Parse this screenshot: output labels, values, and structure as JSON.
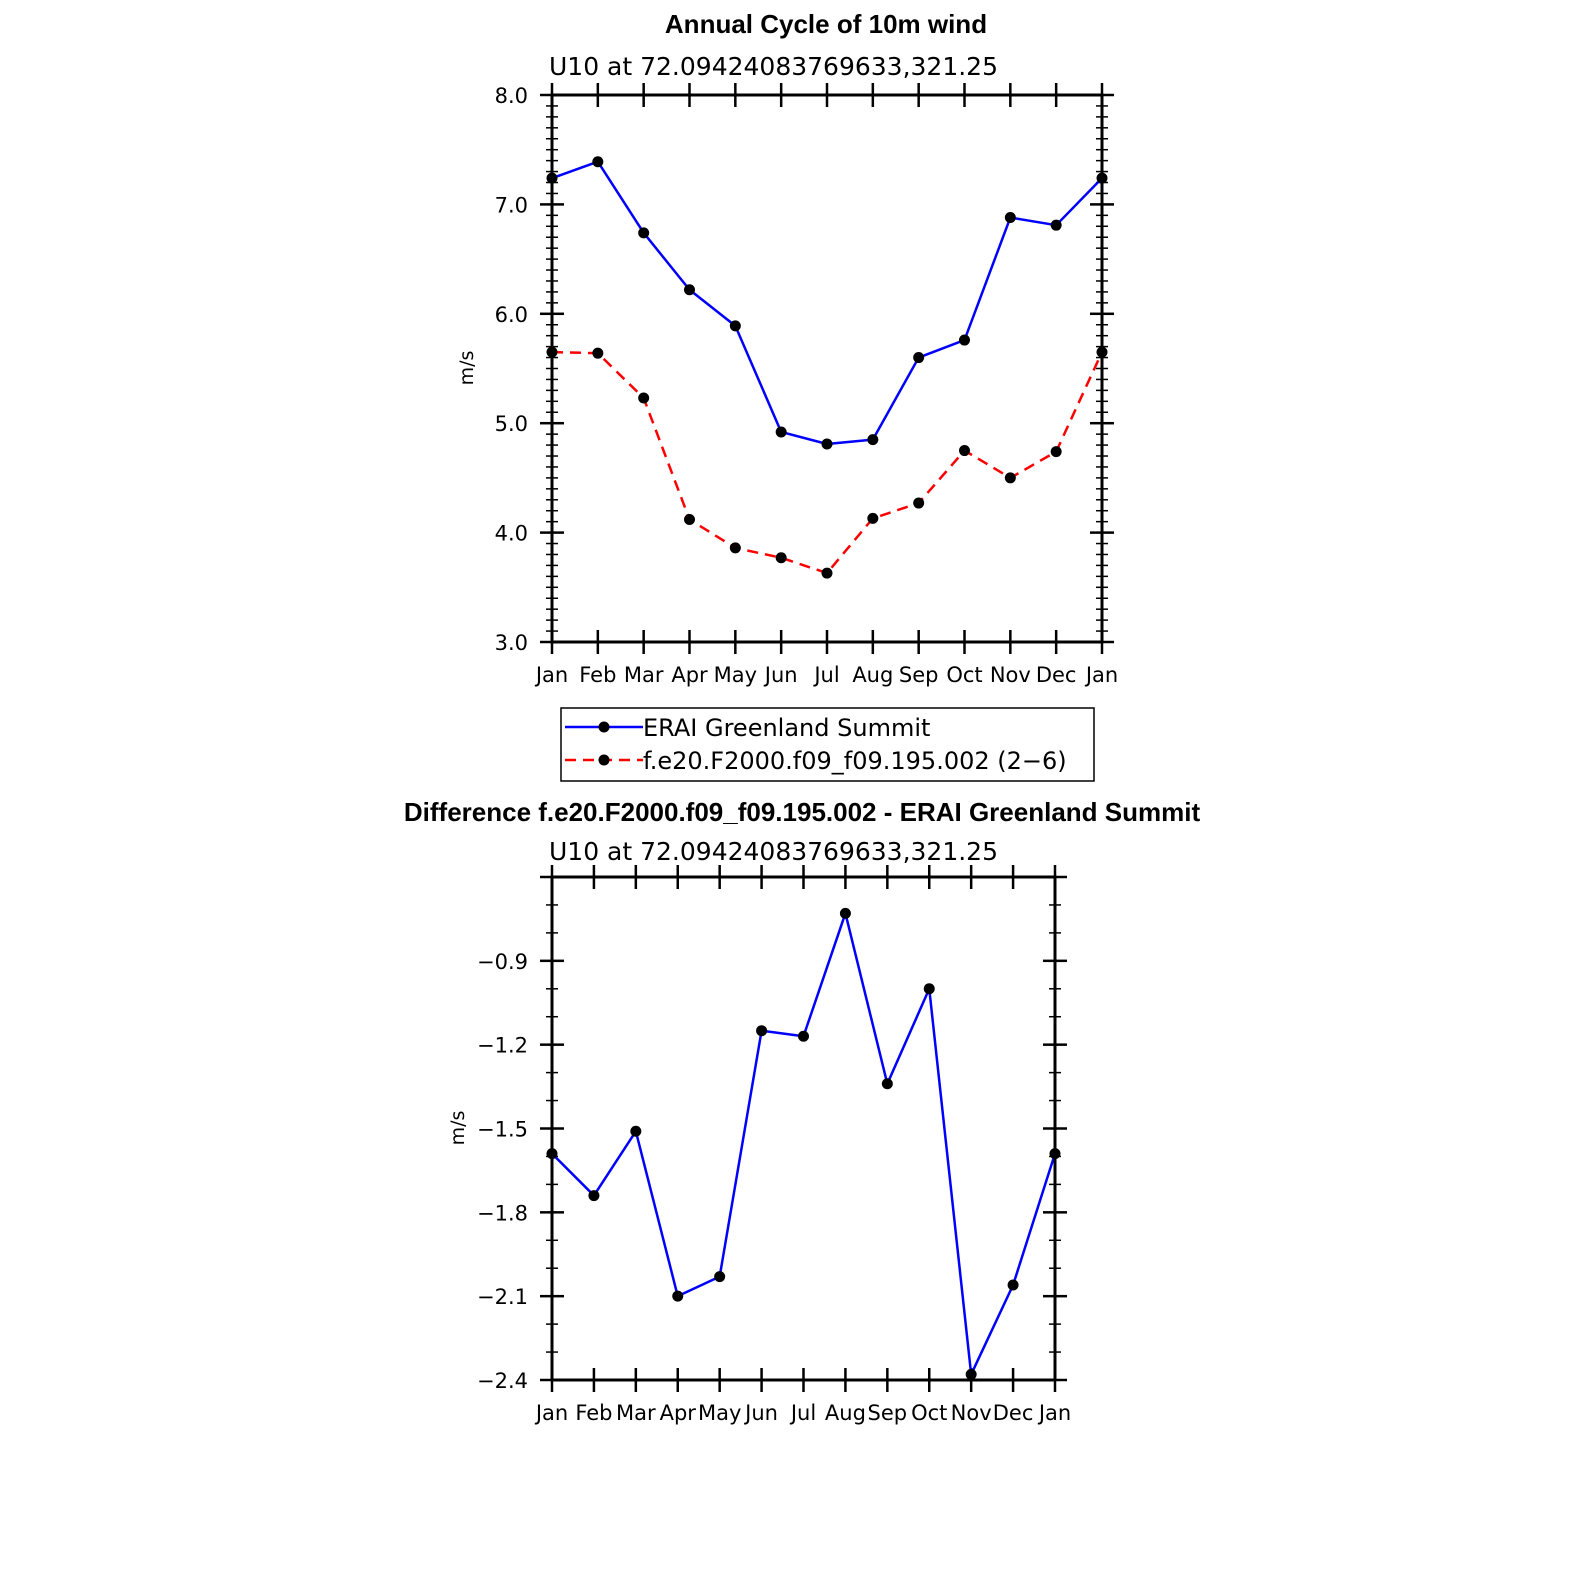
{
  "chart_data": [
    {
      "type": "line",
      "title": "Annual Cycle of 10m wind",
      "subtitle": "U10 at 72.09424083769633,321.25",
      "ylabel": "m/s",
      "categories": [
        "Jan",
        "Feb",
        "Mar",
        "Apr",
        "May",
        "Jun",
        "Jul",
        "Aug",
        "Sep",
        "Oct",
        "Nov",
        "Dec",
        "Jan"
      ],
      "ylim": [
        3.0,
        8.0
      ],
      "yticks": [
        "3.0",
        "4.0",
        "5.0",
        "6.0",
        "7.0",
        "8.0"
      ],
      "series": [
        {
          "name": "ERAI Greenland Summit",
          "color": "#0000ff",
          "dash": "solid",
          "values": [
            7.24,
            7.39,
            6.74,
            6.22,
            5.89,
            4.92,
            4.81,
            4.85,
            5.6,
            5.76,
            6.88,
            6.81,
            7.24
          ]
        },
        {
          "name": "f.e20.F2000.f09_f09.195.002 (2−6)",
          "color": "#ff0000",
          "dash": "dashed",
          "values": [
            5.65,
            5.64,
            5.23,
            4.12,
            3.86,
            3.77,
            3.63,
            4.13,
            4.27,
            4.75,
            4.5,
            4.74,
            5.65
          ]
        }
      ],
      "legend": "below"
    },
    {
      "type": "line",
      "title": "Difference f.e20.F2000.f09_f09.195.002 - ERAI Greenland Summit",
      "subtitle": "U10 at 72.09424083769633,321.25",
      "ylabel": "m/s",
      "categories": [
        "Jan",
        "Feb",
        "Mar",
        "Apr",
        "May",
        "Jun",
        "Jul",
        "Aug",
        "Sep",
        "Oct",
        "Nov",
        "Dec",
        "Jan"
      ],
      "ylim": [
        -2.4,
        -0.6
      ],
      "yticks": [
        "−2.4",
        "−2.1",
        "−1.8",
        "−1.5",
        "−1.2",
        "−0.9"
      ],
      "series": [
        {
          "name": "Difference",
          "color": "#0000ff",
          "dash": "solid",
          "values": [
            -1.59,
            -1.74,
            -1.51,
            -2.1,
            -2.03,
            -1.15,
            -1.17,
            -0.73,
            -1.34,
            -1.0,
            -2.38,
            -2.06,
            -1.59
          ]
        }
      ]
    }
  ]
}
